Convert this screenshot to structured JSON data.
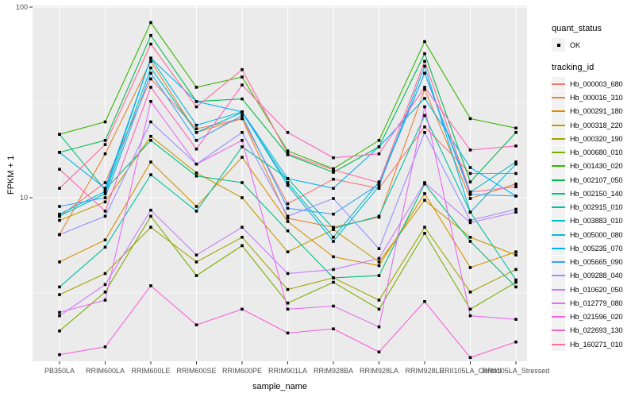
{
  "figure": {
    "background": "#FFFFFF",
    "panel_background": "#EBEBEB",
    "grid_color": "#FFFFFF",
    "axis_text_color": "#4D4D4D",
    "tick_color": "#333333",
    "point_color": "#000000"
  },
  "legend": {
    "quant_status_title": "quant_status",
    "quant_status_items": [
      {
        "label": "OK",
        "symbol": "black-point"
      }
    ],
    "tracking_id_title": "tracking_id"
  },
  "chart_data": {
    "type": "line",
    "title": "",
    "xlabel": "sample_name",
    "ylabel": "FPKM + 1",
    "y_scale": "log10",
    "ylim": [
      1.39,
      102
    ],
    "yticks": [
      10,
      100
    ],
    "ytick_labels": [
      "10",
      "100"
    ],
    "grid": true,
    "legend_position": "right",
    "point_shape": "small-black-square",
    "categories": [
      "PB350LA",
      "RRIM600LA",
      "RRIM600LE",
      "RRIM600SE",
      "RRIM600PE",
      "RRIM901LA",
      "RRIM928BA",
      "RRIM928LA",
      "RRIM928LE",
      "RRII105LA_Control",
      "RRII105LA_Stressed"
    ],
    "series": [
      {
        "name": "Hb_000003_680",
        "color": "#F8766D",
        "values": [
          8.0,
          12.0,
          42,
          23,
          26,
          9.3,
          12.5,
          11.2,
          23.5,
          13.4,
          13.4
        ]
      },
      {
        "name": "Hb_000016_310",
        "color": "#EA8331",
        "values": [
          6.4,
          17.0,
          52,
          22,
          26,
          7.8,
          7.0,
          7.9,
          37,
          9.9,
          11.8
        ]
      },
      {
        "name": "Hb_000291_180",
        "color": "#D89000",
        "values": [
          4.6,
          6.0,
          15.4,
          9.0,
          16.3,
          7.5,
          4.9,
          4.4,
          10.5,
          4.3,
          5.2
        ]
      },
      {
        "name": "Hb_000318_220",
        "color": "#C09B00",
        "values": [
          7.6,
          9.5,
          21,
          13.5,
          10.0,
          5.2,
          6.8,
          4.6,
          9.7,
          6.2,
          5.0
        ]
      },
      {
        "name": "Hb_000320_190",
        "color": "#A3A500",
        "values": [
          3.1,
          4.0,
          7.0,
          4.6,
          6.2,
          3.3,
          3.8,
          2.9,
          7.0,
          3.2,
          4.2
        ]
      },
      {
        "name": "Hb_000680_010",
        "color": "#7CAE00",
        "values": [
          2.0,
          3.2,
          8.0,
          3.9,
          5.6,
          2.8,
          3.6,
          2.6,
          6.5,
          2.6,
          3.6
        ]
      },
      {
        "name": "Hb_001430_020",
        "color": "#39B600",
        "values": [
          21.5,
          25,
          83,
          38,
          43,
          17.6,
          14.2,
          20,
          66,
          26,
          23.2
        ]
      },
      {
        "name": "Hb_002107_050",
        "color": "#00BB4E",
        "values": [
          17.3,
          20,
          71,
          32,
          33,
          16.8,
          13.6,
          18.5,
          57,
          12.1,
          22.0
        ]
      },
      {
        "name": "Hb_002150_140",
        "color": "#00BF7D",
        "values": [
          21.5,
          11,
          20,
          13,
          12,
          6.7,
          3.8,
          3.9,
          11.8,
          5.9,
          3.4
        ]
      },
      {
        "name": "Hb_002915_010",
        "color": "#00C1A3",
        "values": [
          3.4,
          5.5,
          13.2,
          8.5,
          18.5,
          12.6,
          6.9,
          8.0,
          27,
          8.4,
          3.7
        ]
      },
      {
        "name": "Hb_003883_010",
        "color": "#00BFC4",
        "values": [
          8.0,
          10.5,
          48,
          22,
          28,
          12.0,
          6.2,
          12.1,
          45,
          10.7,
          15.4
        ]
      },
      {
        "name": "Hb_005000_080",
        "color": "#00BAE0",
        "values": [
          8.2,
          10.8,
          54,
          24,
          28.2,
          11.6,
          5.9,
          11.5,
          49,
          8.4,
          15.0
        ]
      },
      {
        "name": "Hb_005235_070",
        "color": "#00B0F6",
        "values": [
          17.3,
          11.2,
          54,
          32,
          28.2,
          12.6,
          11.2,
          18.5,
          33.2,
          14.4,
          10.2
        ]
      },
      {
        "name": "Hb_005665_090",
        "color": "#35A2FF",
        "values": [
          9.0,
          10.0,
          45,
          20,
          27,
          8.8,
          8.2,
          11.8,
          45,
          10.4,
          10.2
        ]
      },
      {
        "name": "Hb_009288_040",
        "color": "#9590FF",
        "values": [
          6.4,
          8.0,
          25,
          15,
          22,
          8.0,
          9.9,
          5.4,
          22,
          7.6,
          8.7
        ]
      },
      {
        "name": "Hb_010620_050",
        "color": "#C77CFF",
        "values": [
          2.4,
          3.5,
          8.6,
          5.0,
          7.0,
          4.0,
          4.2,
          4.8,
          12,
          7.4,
          8.4
        ]
      },
      {
        "name": "Hb_012779_080",
        "color": "#E76BF3",
        "values": [
          2.5,
          2.9,
          32,
          15,
          20,
          2.6,
          2.7,
          2.1,
          30,
          2.4,
          2.3
        ]
      },
      {
        "name": "Hb_021596_020",
        "color": "#FA62DB",
        "values": [
          1.5,
          1.65,
          3.45,
          2.15,
          2.6,
          1.95,
          2.05,
          1.55,
          2.85,
          1.45,
          1.75
        ]
      },
      {
        "name": "Hb_022693_130",
        "color": "#FF62BC",
        "values": [
          14.1,
          8.5,
          38,
          18,
          39,
          22,
          16.2,
          17,
          38,
          17.8,
          18.7
        ]
      },
      {
        "name": "Hb_160271_010",
        "color": "#FF6A98",
        "values": [
          11.2,
          19,
          64,
          30,
          47,
          17,
          14,
          12,
          52,
          10.7,
          11.4
        ]
      }
    ]
  }
}
